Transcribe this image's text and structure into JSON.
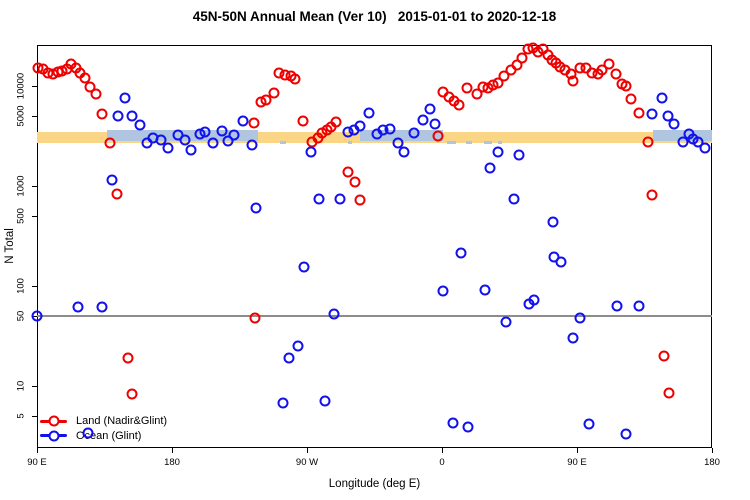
{
  "title": "45N-50N Annual Mean (Ver 10)   2015-01-01 to 2020-12-18",
  "legend": {
    "items": [
      {
        "label": "Land (Nadir&Glint)",
        "color": "#ee0000"
      },
      {
        "label": "Ocean (Glint)",
        "color": "#1111ee"
      }
    ]
  },
  "chart_data": {
    "type": "scatter",
    "title": "45N-50N Annual Mean (Ver 10)   2015-01-01 to 2020-12-18",
    "xlabel": "Longitude (deg E)",
    "ylabel": "N Total",
    "x_axis": {
      "note": "longitude axis wraps eastward over 450 degrees",
      "range_deg": [
        90,
        540
      ],
      "ticks": [
        {
          "deg": 90,
          "label": "90 E"
        },
        {
          "deg": 180,
          "label": "180"
        },
        {
          "deg": 270,
          "label": "90 W"
        },
        {
          "deg": 360,
          "label": "0"
        },
        {
          "deg": 450,
          "label": "90 E"
        },
        {
          "deg": 540,
          "label": "180"
        }
      ]
    },
    "y_axis": {
      "scale": "log",
      "range": [
        2.4,
        25700
      ],
      "ticks": [
        {
          "value": 10000,
          "label": "10000"
        },
        {
          "value": 5000,
          "label": "5000"
        },
        {
          "value": 1000,
          "label": "1000"
        },
        {
          "value": 500,
          "label": "500"
        },
        {
          "value": 100,
          "label": "100"
        },
        {
          "value": 50,
          "label": "50"
        },
        {
          "value": 10,
          "label": "10"
        },
        {
          "value": 5,
          "label": "5"
        }
      ]
    },
    "reference_lines": {
      "gray_line_value": 50,
      "gray_line_color": "#8c8c8c",
      "land_band": {
        "value": 3050,
        "color": "#fad586",
        "segments_deg": [
          [
            90,
            540
          ]
        ]
      },
      "ocean_band": {
        "value": 3200,
        "color": "#afc5e0",
        "segments_deg": [
          [
            136.7,
            237.3
          ],
          [
            305.3,
            360.7
          ],
          [
            500.7,
            540
          ]
        ],
        "fragments_deg": [
          [
            252,
            256
          ],
          [
            297,
            300
          ],
          [
            363,
            369
          ],
          [
            376,
            380
          ],
          [
            388,
            393
          ],
          [
            397,
            400
          ]
        ]
      }
    },
    "legend_position": "bottom-left",
    "grid": "off",
    "series": [
      {
        "name": "Land (Nadir&Glint)",
        "color": "#ee0000",
        "points": [
          [
            90.7,
            15100
          ],
          [
            94,
            14800
          ],
          [
            97.3,
            13500
          ],
          [
            100.7,
            13200
          ],
          [
            104,
            13800
          ],
          [
            106.7,
            14100
          ],
          [
            110,
            14800
          ],
          [
            112.7,
            16600
          ],
          [
            116,
            15100
          ],
          [
            118.7,
            13500
          ],
          [
            122,
            12000
          ],
          [
            125.3,
            9770
          ],
          [
            129.3,
            8320
          ],
          [
            133.3,
            5250
          ],
          [
            138.7,
            2690
          ],
          [
            143.3,
            830
          ],
          [
            150.7,
            19
          ],
          [
            153.3,
            8.3
          ],
          [
            234.7,
            4270
          ],
          [
            235.3,
            48
          ],
          [
            239.3,
            6920
          ],
          [
            242.7,
            7240
          ],
          [
            248,
            8510
          ],
          [
            251.3,
            13500
          ],
          [
            255.3,
            12900
          ],
          [
            259.3,
            12600
          ],
          [
            262,
            11700
          ],
          [
            267.3,
            4470
          ],
          [
            273.3,
            2750
          ],
          [
            277.3,
            3020
          ],
          [
            280,
            3390
          ],
          [
            283.3,
            3630
          ],
          [
            286,
            3890
          ],
          [
            289.3,
            4370
          ],
          [
            297.3,
            1380
          ],
          [
            302,
            1100
          ],
          [
            305.3,
            724
          ],
          [
            357.3,
            3160
          ],
          [
            360.7,
            8710
          ],
          [
            364.7,
            7760
          ],
          [
            368,
            7080
          ],
          [
            371.3,
            6460
          ],
          [
            376.7,
            9550
          ],
          [
            383.3,
            8320
          ],
          [
            387.3,
            9770
          ],
          [
            390.7,
            9550
          ],
          [
            394,
            10200
          ],
          [
            397.3,
            10700
          ],
          [
            401.3,
            12600
          ],
          [
            406,
            14500
          ],
          [
            410,
            16200
          ],
          [
            413.3,
            19100
          ],
          [
            417.3,
            23400
          ],
          [
            420.7,
            24000
          ],
          [
            424,
            21900
          ],
          [
            427.3,
            23400
          ],
          [
            430.7,
            20400
          ],
          [
            433.3,
            18200
          ],
          [
            436,
            17000
          ],
          [
            438.7,
            15500
          ],
          [
            442,
            14500
          ],
          [
            446,
            13200
          ],
          [
            447.3,
            11200
          ],
          [
            452,
            15100
          ],
          [
            456,
            15100
          ],
          [
            460,
            13500
          ],
          [
            464,
            13200
          ],
          [
            466.7,
            14500
          ],
          [
            471.3,
            16600
          ],
          [
            476,
            13200
          ],
          [
            480,
            10500
          ],
          [
            482.7,
            10000
          ],
          [
            486,
            7410
          ],
          [
            491.3,
            5370
          ],
          [
            497.3,
            2750
          ],
          [
            500,
            810
          ],
          [
            508,
            20
          ],
          [
            511.3,
            8.5
          ]
        ]
      },
      {
        "name": "Ocean (Glint)",
        "color": "#1111ee",
        "points": [
          [
            90,
            50
          ],
          [
            117.3,
            61
          ],
          [
            124,
            3.4
          ],
          [
            133.3,
            61
          ],
          [
            140,
            1150
          ],
          [
            144,
            5010
          ],
          [
            148.7,
            7590
          ],
          [
            153.3,
            5010
          ],
          [
            158.7,
            4070
          ],
          [
            163.3,
            2690
          ],
          [
            167.3,
            3020
          ],
          [
            172.7,
            2880
          ],
          [
            177.3,
            2400
          ],
          [
            184,
            3240
          ],
          [
            188.7,
            2880
          ],
          [
            192.7,
            2290
          ],
          [
            198.7,
            3310
          ],
          [
            202,
            3470
          ],
          [
            207.3,
            2690
          ],
          [
            213.3,
            3550
          ],
          [
            217.3,
            2820
          ],
          [
            221.3,
            3240
          ],
          [
            227.3,
            4470
          ],
          [
            233.3,
            2570
          ],
          [
            236,
            603
          ],
          [
            254,
            6.8
          ],
          [
            258,
            19
          ],
          [
            264,
            25
          ],
          [
            268,
            155
          ],
          [
            272.7,
            2190
          ],
          [
            278,
            740
          ],
          [
            282,
            7.1
          ],
          [
            288,
            53
          ],
          [
            292,
            740
          ],
          [
            297.3,
            3470
          ],
          [
            301.3,
            3630
          ],
          [
            305.3,
            3980
          ],
          [
            311.3,
            5370
          ],
          [
            316.7,
            3310
          ],
          [
            320.7,
            3630
          ],
          [
            325.3,
            3720
          ],
          [
            330.7,
            2690
          ],
          [
            334.7,
            2190
          ],
          [
            341.3,
            3390
          ],
          [
            347.3,
            4570
          ],
          [
            352,
            5890
          ],
          [
            355.3,
            4170
          ],
          [
            360.7,
            89
          ],
          [
            367.3,
            4.3
          ],
          [
            372.7,
            214
          ],
          [
            377.3,
            3.9
          ],
          [
            388.7,
            91
          ],
          [
            392,
            1510
          ],
          [
            397.3,
            2190
          ],
          [
            402.7,
            44
          ],
          [
            408,
            740
          ],
          [
            411.3,
            2040
          ],
          [
            418,
            66
          ],
          [
            421.3,
            72
          ],
          [
            434,
            437
          ],
          [
            434.7,
            195
          ],
          [
            439.3,
            174
          ],
          [
            447.3,
            30
          ],
          [
            452,
            48
          ],
          [
            458,
            4.2
          ],
          [
            476.7,
            63
          ],
          [
            482.7,
            3.3
          ],
          [
            491.3,
            63
          ],
          [
            500,
            5250
          ],
          [
            506.7,
            7590
          ],
          [
            510.7,
            5010
          ],
          [
            514.7,
            4170
          ],
          [
            520.7,
            2750
          ],
          [
            524.7,
            3310
          ],
          [
            527.3,
            2950
          ],
          [
            530.7,
            2750
          ],
          [
            535.3,
            2400
          ]
        ]
      }
    ]
  }
}
